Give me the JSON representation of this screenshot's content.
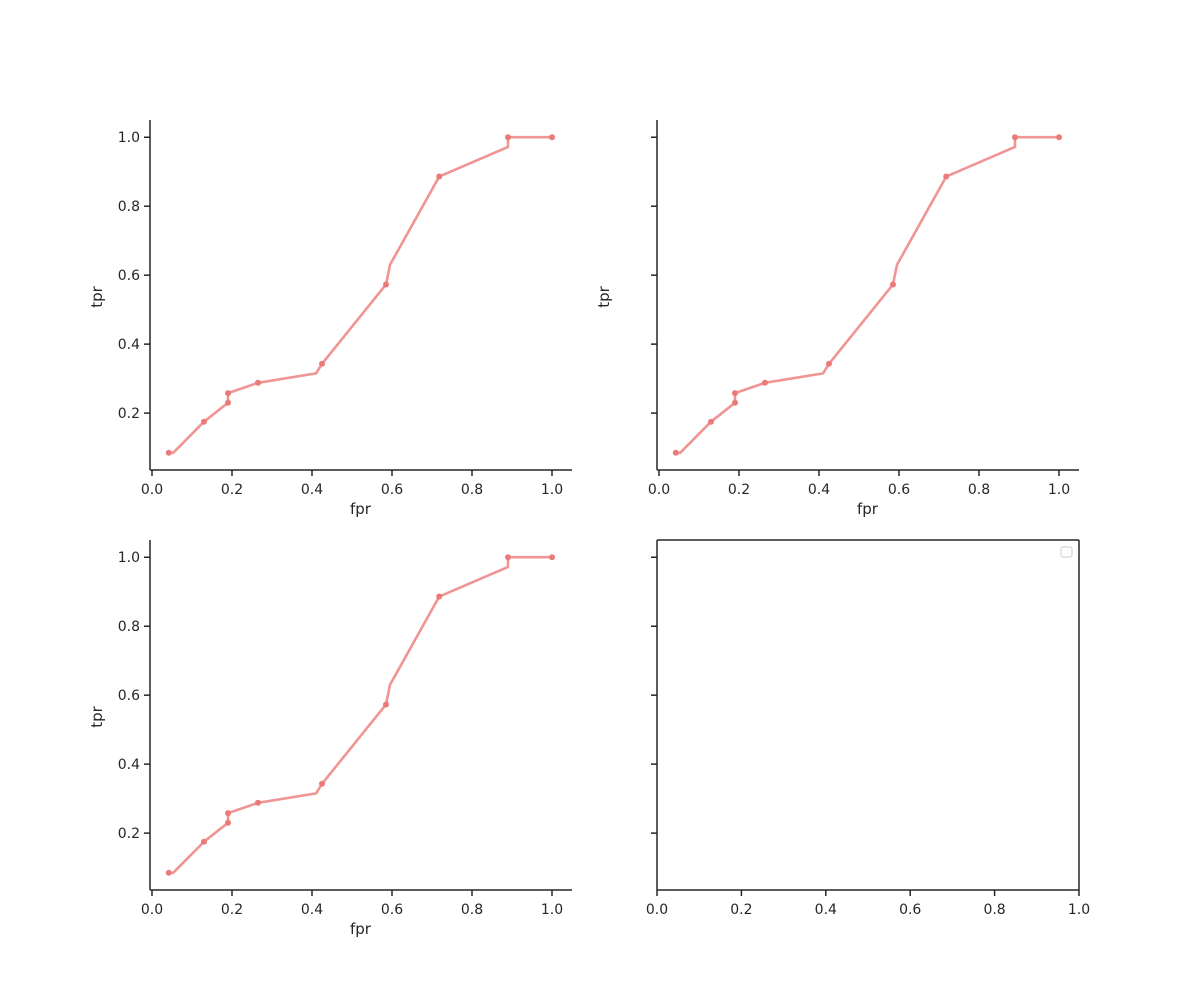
{
  "chart_data": [
    {
      "type": "line",
      "panel": "top-left",
      "xlabel": "fpr",
      "ylabel": "tpr",
      "xlim": [
        -0.005,
        1.05
      ],
      "ylim": [
        0.035,
        1.05
      ],
      "xticks": [
        0.0,
        0.2,
        0.4,
        0.6,
        0.8,
        1.0
      ],
      "xtick_labels": [
        "0.0",
        "0.2",
        "0.4",
        "0.6",
        "0.8",
        "1.0"
      ],
      "yticks": [
        0.2,
        0.4,
        0.6,
        0.8,
        1.0
      ],
      "ytick_labels": [
        "0.2",
        "0.4",
        "0.6",
        "0.8",
        "1.0"
      ],
      "show_yticklabels": true,
      "spines": "left-bottom",
      "color": "#f09494",
      "marker_color": "#eb7a7a",
      "x": [
        0.042,
        0.053,
        0.13,
        0.19,
        0.19,
        0.265,
        0.41,
        0.425,
        0.585,
        0.595,
        0.718,
        0.89,
        0.89,
        1.0
      ],
      "y": [
        0.085,
        0.085,
        0.175,
        0.23,
        0.258,
        0.288,
        0.315,
        0.343,
        0.573,
        0.63,
        0.886,
        0.972,
        1.0,
        1.0
      ],
      "markers_x": [
        0.042,
        0.13,
        0.19,
        0.19,
        0.265,
        0.425,
        0.585,
        0.718,
        0.89,
        1.0
      ],
      "markers_y": [
        0.085,
        0.175,
        0.23,
        0.258,
        0.288,
        0.343,
        0.573,
        0.886,
        1.0,
        1.0
      ]
    },
    {
      "type": "line",
      "panel": "top-right",
      "xlabel": "fpr",
      "ylabel": "tpr",
      "xlim": [
        -0.005,
        1.05
      ],
      "ylim": [
        0.035,
        1.05
      ],
      "xticks": [
        0.0,
        0.2,
        0.4,
        0.6,
        0.8,
        1.0
      ],
      "xtick_labels": [
        "0.0",
        "0.2",
        "0.4",
        "0.6",
        "0.8",
        "1.0"
      ],
      "yticks": [
        0.2,
        0.4,
        0.6,
        0.8,
        1.0
      ],
      "ytick_labels": [
        "",
        "",
        "",
        "",
        ""
      ],
      "show_yticklabels": false,
      "spines": "left-bottom",
      "color": "#f09494",
      "marker_color": "#eb7a7a",
      "x": [
        0.042,
        0.053,
        0.13,
        0.19,
        0.19,
        0.265,
        0.41,
        0.425,
        0.585,
        0.595,
        0.718,
        0.89,
        0.89,
        1.0
      ],
      "y": [
        0.085,
        0.085,
        0.175,
        0.23,
        0.258,
        0.288,
        0.315,
        0.343,
        0.573,
        0.63,
        0.886,
        0.972,
        1.0,
        1.0
      ],
      "markers_x": [
        0.042,
        0.13,
        0.19,
        0.19,
        0.265,
        0.425,
        0.585,
        0.718,
        0.89,
        1.0
      ],
      "markers_y": [
        0.085,
        0.175,
        0.23,
        0.258,
        0.288,
        0.343,
        0.573,
        0.886,
        1.0,
        1.0
      ]
    },
    {
      "type": "line",
      "panel": "bottom-left",
      "xlabel": "fpr",
      "ylabel": "tpr",
      "xlim": [
        -0.005,
        1.05
      ],
      "ylim": [
        0.035,
        1.05
      ],
      "xticks": [
        0.0,
        0.2,
        0.4,
        0.6,
        0.8,
        1.0
      ],
      "xtick_labels": [
        "0.0",
        "0.2",
        "0.4",
        "0.6",
        "0.8",
        "1.0"
      ],
      "yticks": [
        0.2,
        0.4,
        0.6,
        0.8,
        1.0
      ],
      "ytick_labels": [
        "0.2",
        "0.4",
        "0.6",
        "0.8",
        "1.0"
      ],
      "show_yticklabels": true,
      "spines": "left-bottom",
      "color": "#f09494",
      "marker_color": "#eb7a7a",
      "x": [
        0.042,
        0.053,
        0.13,
        0.19,
        0.19,
        0.265,
        0.41,
        0.425,
        0.585,
        0.595,
        0.718,
        0.89,
        0.89,
        1.0
      ],
      "y": [
        0.085,
        0.085,
        0.175,
        0.23,
        0.258,
        0.288,
        0.315,
        0.343,
        0.573,
        0.63,
        0.886,
        0.972,
        1.0,
        1.0
      ],
      "markers_x": [
        0.042,
        0.13,
        0.19,
        0.19,
        0.265,
        0.425,
        0.585,
        0.718,
        0.89,
        1.0
      ],
      "markers_y": [
        0.085,
        0.175,
        0.23,
        0.258,
        0.288,
        0.343,
        0.573,
        0.886,
        1.0,
        1.0
      ]
    },
    {
      "type": "line",
      "panel": "bottom-right",
      "xlabel": "",
      "ylabel": "",
      "xlim": [
        0.0,
        1.0
      ],
      "ylim": [
        0.035,
        1.05
      ],
      "xticks": [
        0.0,
        0.2,
        0.4,
        0.6,
        0.8,
        1.0
      ],
      "xtick_labels": [
        "0.0",
        "0.2",
        "0.4",
        "0.6",
        "0.8",
        "1.0"
      ],
      "yticks": [
        0.2,
        0.4,
        0.6,
        0.8,
        1.0
      ],
      "ytick_labels": [
        "",
        "",
        "",
        "",
        ""
      ],
      "show_yticklabels": false,
      "spines": "all",
      "legend": "top-right",
      "legend_entries": [],
      "x": [],
      "y": []
    }
  ]
}
